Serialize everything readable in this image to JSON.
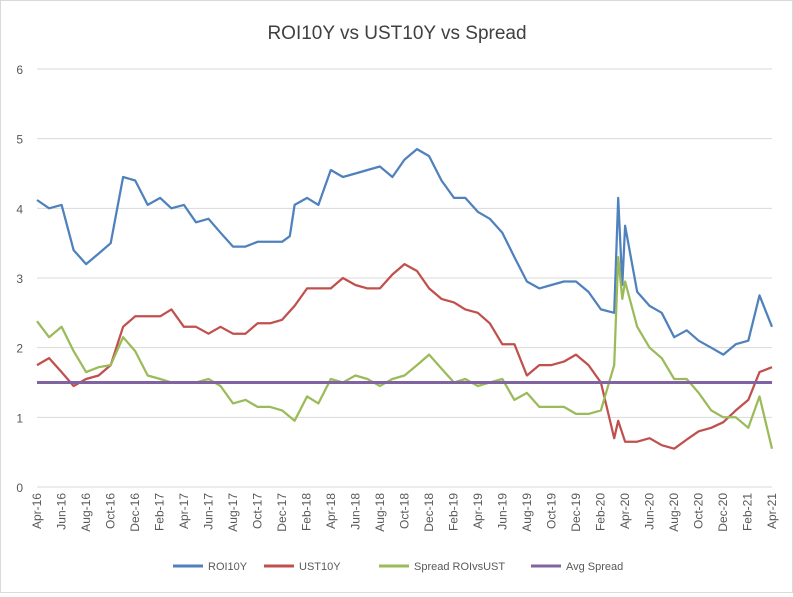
{
  "chart_data": {
    "type": "line",
    "title": "ROI10Y vs UST10Y vs Spread",
    "xlabel": "",
    "ylabel": "",
    "ylim": [
      0,
      6
    ],
    "y_ticks": [
      "0",
      "1",
      "2",
      "3",
      "4",
      "5",
      "6"
    ],
    "x_range": [
      "2016-04",
      "2021-04"
    ],
    "x_tick_labels": [
      "Apr-16",
      "Jun-16",
      "Aug-16",
      "Oct-16",
      "Dec-16",
      "Feb-17",
      "Apr-17",
      "Jun-17",
      "Aug-17",
      "Oct-17",
      "Dec-17",
      "Feb-18",
      "Apr-18",
      "Jun-18",
      "Aug-18",
      "Oct-18",
      "Dec-18",
      "Feb-19",
      "Apr-19",
      "Jun-19",
      "Aug-19",
      "Oct-19",
      "Dec-19",
      "Feb-20",
      "Apr-20",
      "Jun-20",
      "Aug-20",
      "Oct-20",
      "Dec-20",
      "Feb-21",
      "Apr-21"
    ],
    "grid": "horizontal",
    "legend_position": "bottom",
    "series": [
      {
        "name": "ROI10Y",
        "color": "#4f81bd",
        "points": [
          [
            "2016-04",
            4.12
          ],
          [
            "2016-05",
            4.0
          ],
          [
            "2016-06",
            4.05
          ],
          [
            "2016-07",
            3.4
          ],
          [
            "2016-08",
            3.2
          ],
          [
            "2016-09",
            3.35
          ],
          [
            "2016-10",
            3.5
          ],
          [
            "2016-11",
            4.45
          ],
          [
            "2016-12",
            4.4
          ],
          [
            "2017-01",
            4.05
          ],
          [
            "2017-02",
            4.15
          ],
          [
            "2017-03",
            4.0
          ],
          [
            "2017-04",
            4.05
          ],
          [
            "2017-05",
            3.8
          ],
          [
            "2017-06",
            3.85
          ],
          [
            "2017-07",
            3.65
          ],
          [
            "2017-08",
            3.45
          ],
          [
            "2017-09",
            3.45
          ],
          [
            "2017-10",
            3.52
          ],
          [
            "2017-11",
            3.52
          ],
          [
            "2017-12",
            3.52
          ],
          [
            "2017-12-20",
            3.6
          ],
          [
            "2018-01",
            4.05
          ],
          [
            "2018-02",
            4.15
          ],
          [
            "2018-03",
            4.05
          ],
          [
            "2018-04",
            4.55
          ],
          [
            "2018-05",
            4.45
          ],
          [
            "2018-06",
            4.5
          ],
          [
            "2018-07",
            4.55
          ],
          [
            "2018-08",
            4.6
          ],
          [
            "2018-09",
            4.45
          ],
          [
            "2018-10",
            4.7
          ],
          [
            "2018-11",
            4.85
          ],
          [
            "2018-12",
            4.75
          ],
          [
            "2019-01",
            4.4
          ],
          [
            "2019-02",
            4.15
          ],
          [
            "2019-03",
            4.15
          ],
          [
            "2019-04",
            3.95
          ],
          [
            "2019-05",
            3.85
          ],
          [
            "2019-06",
            3.65
          ],
          [
            "2019-07",
            3.3
          ],
          [
            "2019-08",
            2.95
          ],
          [
            "2019-09",
            2.85
          ],
          [
            "2019-10",
            2.9
          ],
          [
            "2019-11",
            2.95
          ],
          [
            "2019-12",
            2.95
          ],
          [
            "2020-01",
            2.8
          ],
          [
            "2020-02",
            2.55
          ],
          [
            "2020-03-05",
            2.5
          ],
          [
            "2020-03-15",
            4.15
          ],
          [
            "2020-03-25",
            2.9
          ],
          [
            "2020-04",
            3.75
          ],
          [
            "2020-05",
            2.8
          ],
          [
            "2020-06",
            2.6
          ],
          [
            "2020-07",
            2.5
          ],
          [
            "2020-08",
            2.15
          ],
          [
            "2020-09",
            2.25
          ],
          [
            "2020-10",
            2.1
          ],
          [
            "2020-11",
            2.0
          ],
          [
            "2020-12",
            1.9
          ],
          [
            "2021-01",
            2.05
          ],
          [
            "2021-02",
            2.1
          ],
          [
            "2021-03",
            2.75
          ],
          [
            "2021-04",
            2.3
          ]
        ]
      },
      {
        "name": "UST10Y",
        "color": "#c0504d",
        "points": [
          [
            "2016-04",
            1.75
          ],
          [
            "2016-05",
            1.85
          ],
          [
            "2016-06",
            1.65
          ],
          [
            "2016-07",
            1.45
          ],
          [
            "2016-08",
            1.55
          ],
          [
            "2016-09",
            1.6
          ],
          [
            "2016-10",
            1.75
          ],
          [
            "2016-11",
            2.3
          ],
          [
            "2016-12",
            2.45
          ],
          [
            "2017-01",
            2.45
          ],
          [
            "2017-02",
            2.45
          ],
          [
            "2017-03",
            2.55
          ],
          [
            "2017-04",
            2.3
          ],
          [
            "2017-05",
            2.3
          ],
          [
            "2017-06",
            2.2
          ],
          [
            "2017-07",
            2.3
          ],
          [
            "2017-08",
            2.2
          ],
          [
            "2017-09",
            2.2
          ],
          [
            "2017-10",
            2.35
          ],
          [
            "2017-11",
            2.35
          ],
          [
            "2017-12",
            2.4
          ],
          [
            "2018-01",
            2.6
          ],
          [
            "2018-02",
            2.85
          ],
          [
            "2018-03",
            2.85
          ],
          [
            "2018-04",
            2.85
          ],
          [
            "2018-05",
            3.0
          ],
          [
            "2018-06",
            2.9
          ],
          [
            "2018-07",
            2.85
          ],
          [
            "2018-08",
            2.85
          ],
          [
            "2018-09",
            3.05
          ],
          [
            "2018-10",
            3.2
          ],
          [
            "2018-11",
            3.1
          ],
          [
            "2018-12",
            2.85
          ],
          [
            "2019-01",
            2.7
          ],
          [
            "2019-02",
            2.65
          ],
          [
            "2019-03",
            2.55
          ],
          [
            "2019-04",
            2.5
          ],
          [
            "2019-05",
            2.35
          ],
          [
            "2019-06",
            2.05
          ],
          [
            "2019-07",
            2.05
          ],
          [
            "2019-08",
            1.6
          ],
          [
            "2019-09",
            1.75
          ],
          [
            "2019-10",
            1.75
          ],
          [
            "2019-11",
            1.8
          ],
          [
            "2019-12",
            1.9
          ],
          [
            "2020-01",
            1.75
          ],
          [
            "2020-02",
            1.5
          ],
          [
            "2020-03-05",
            0.7
          ],
          [
            "2020-03-15",
            0.95
          ],
          [
            "2020-04",
            0.65
          ],
          [
            "2020-05",
            0.65
          ],
          [
            "2020-06",
            0.7
          ],
          [
            "2020-07",
            0.6
          ],
          [
            "2020-08",
            0.55
          ],
          [
            "2020-09",
            0.68
          ],
          [
            "2020-10",
            0.8
          ],
          [
            "2020-11",
            0.85
          ],
          [
            "2020-12",
            0.93
          ],
          [
            "2021-01",
            1.1
          ],
          [
            "2021-02",
            1.25
          ],
          [
            "2021-03",
            1.65
          ],
          [
            "2021-04",
            1.72
          ]
        ]
      },
      {
        "name": "Spread ROIvsUST",
        "color": "#9bbb59",
        "points": [
          [
            "2016-04",
            2.38
          ],
          [
            "2016-05",
            2.15
          ],
          [
            "2016-06",
            2.3
          ],
          [
            "2016-07",
            1.95
          ],
          [
            "2016-08",
            1.65
          ],
          [
            "2016-09",
            1.72
          ],
          [
            "2016-10",
            1.75
          ],
          [
            "2016-11",
            2.15
          ],
          [
            "2016-12",
            1.95
          ],
          [
            "2017-01",
            1.6
          ],
          [
            "2017-02",
            1.55
          ],
          [
            "2017-03",
            1.5
          ],
          [
            "2017-04",
            1.5
          ],
          [
            "2017-05",
            1.5
          ],
          [
            "2017-06",
            1.55
          ],
          [
            "2017-07",
            1.45
          ],
          [
            "2017-08",
            1.2
          ],
          [
            "2017-09",
            1.25
          ],
          [
            "2017-10",
            1.15
          ],
          [
            "2017-11",
            1.15
          ],
          [
            "2017-12",
            1.1
          ],
          [
            "2018-01",
            0.95
          ],
          [
            "2018-02",
            1.3
          ],
          [
            "2018-03",
            1.2
          ],
          [
            "2018-04",
            1.55
          ],
          [
            "2018-05",
            1.5
          ],
          [
            "2018-06",
            1.6
          ],
          [
            "2018-07",
            1.55
          ],
          [
            "2018-08",
            1.45
          ],
          [
            "2018-09",
            1.55
          ],
          [
            "2018-10",
            1.6
          ],
          [
            "2018-11",
            1.75
          ],
          [
            "2018-12",
            1.9
          ],
          [
            "2019-01",
            1.7
          ],
          [
            "2019-02",
            1.5
          ],
          [
            "2019-03",
            1.55
          ],
          [
            "2019-04",
            1.45
          ],
          [
            "2019-05",
            1.5
          ],
          [
            "2019-06",
            1.55
          ],
          [
            "2019-07",
            1.25
          ],
          [
            "2019-08",
            1.35
          ],
          [
            "2019-09",
            1.15
          ],
          [
            "2019-10",
            1.15
          ],
          [
            "2019-11",
            1.15
          ],
          [
            "2019-12",
            1.05
          ],
          [
            "2020-01",
            1.05
          ],
          [
            "2020-02",
            1.1
          ],
          [
            "2020-03-05",
            1.75
          ],
          [
            "2020-03-15",
            3.3
          ],
          [
            "2020-03-25",
            2.7
          ],
          [
            "2020-04",
            2.95
          ],
          [
            "2020-05",
            2.3
          ],
          [
            "2020-06",
            2.0
          ],
          [
            "2020-07",
            1.85
          ],
          [
            "2020-08",
            1.55
          ],
          [
            "2020-09",
            1.55
          ],
          [
            "2020-10",
            1.35
          ],
          [
            "2020-11",
            1.1
          ],
          [
            "2020-12",
            1.0
          ],
          [
            "2021-01",
            1.0
          ],
          [
            "2021-02",
            0.85
          ],
          [
            "2021-03",
            1.3
          ],
          [
            "2021-04",
            0.55
          ]
        ]
      },
      {
        "name": "Avg Spread",
        "color": "#8064a2",
        "points": [
          [
            "2016-04",
            1.5
          ],
          [
            "2021-04",
            1.5
          ]
        ]
      }
    ]
  }
}
